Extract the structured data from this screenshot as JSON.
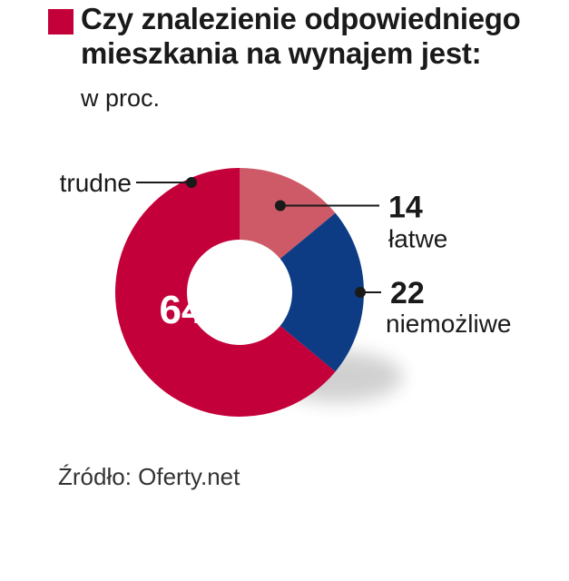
{
  "title": "Czy znalezienie odpowiedniego mieszkania na wynajem jest:",
  "subtitle": "w proc.",
  "source": "Źródło: Oferty.net",
  "colors": {
    "accent": "#c4003a",
    "latwe": "#cd5a66",
    "niemozliwe": "#0d3c84",
    "trudne": "#c4003a"
  },
  "chart_data": {
    "type": "pie",
    "variant": "donut",
    "unit": "w proc.",
    "slices": [
      {
        "label": "łatwe",
        "value": 14,
        "color": "#cd5a66"
      },
      {
        "label": "niemożliwe",
        "value": 22,
        "color": "#0d3c84"
      },
      {
        "label": "trudne",
        "value": 64,
        "color": "#c4003a"
      }
    ]
  }
}
